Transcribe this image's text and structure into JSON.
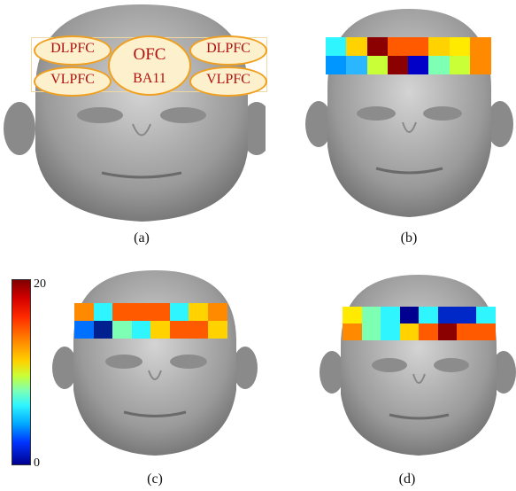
{
  "panels": [
    {
      "caption": "(a)"
    },
    {
      "caption": "(b)"
    },
    {
      "caption": "(c)"
    },
    {
      "caption": "(d)"
    }
  ],
  "regions": {
    "dlpfc_left": "DLPFC",
    "vlpfc_left": "VLPFC",
    "ofc_top": "OFC",
    "ofc_bottom": "BA11",
    "dlpfc_right": "DLPFC",
    "vlpfc_right": "VLPFC"
  },
  "colorbar": {
    "max_label": "20",
    "min_label": "0",
    "max": 20,
    "min": 0
  },
  "heatmaps": {
    "b": [
      [
        "#2ff5ff",
        "#ffd200",
        "#8b0000",
        "#ff5a00",
        "#ff5a00",
        "#ffd200",
        "#ffea00",
        "#ff8a00"
      ],
      [
        "#0096ff",
        "#2ab7ff",
        "#c8ff37",
        "#8b0000",
        "#0000c8",
        "#7dffb4",
        "#c8ff37",
        "#ff8a00"
      ]
    ],
    "c": [
      [
        "#ff8a00",
        "#2ff5ff",
        "#ff5a00",
        "#ff5a00",
        "#ff5a00",
        "#2ff5ff",
        "#ffd200",
        "#ff8a00"
      ],
      [
        "#0070ff",
        "#00208f",
        "#7dffb4",
        "#2ff5ff",
        "#ffd200",
        "#ff5a00",
        "#ff5a00",
        "#ffd200"
      ]
    ],
    "d": [
      [
        "#ffea00",
        "#7dffb4",
        "#2ff5ff",
        "#000090",
        "#2ff5ff",
        "#0028c8",
        "#0028c8",
        "#2ff5ff"
      ],
      [
        "#ff8a00",
        "#7dffb4",
        "#2ff5ff",
        "#ffd200",
        "#ff5a00",
        "#8b0000",
        "#ff5a00",
        "#ff5a00"
      ]
    ]
  }
}
